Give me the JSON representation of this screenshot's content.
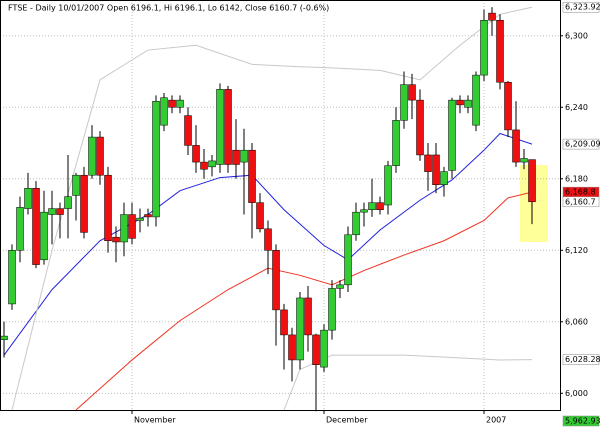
{
  "chart_data": {
    "type": "candlestick",
    "title": "FTSE - Daily 10/01/2007 Open 6196.1, Hi 6196.1, Lo 6142, Close 6160.7 (-0.6%)",
    "categories": [
      null,
      null,
      null,
      null,
      null,
      null,
      null,
      null,
      null,
      null,
      null,
      null,
      null,
      null,
      null,
      null,
      "November",
      null,
      null,
      null,
      null,
      null,
      null,
      null,
      null,
      null,
      null,
      null,
      null,
      null,
      null,
      null,
      null,
      null,
      null,
      null,
      null,
      null,
      null,
      null,
      "December",
      null,
      null,
      null,
      null,
      null,
      null,
      null,
      null,
      null,
      null,
      null,
      null,
      null,
      null,
      null,
      null,
      null,
      null,
      null,
      "2007",
      null,
      null,
      null,
      null,
      null,
      null
    ],
    "open": [
      6045,
      6075,
      6120,
      6155,
      6172,
      6112,
      6150,
      6155,
      6155,
      6166,
      6183,
      6183,
      6215,
      6183,
      6131,
      6127,
      6150,
      6145,
      6150,
      6148,
      6225,
      6246,
      6240,
      6233,
      6208,
      6194,
      6190,
      6192,
      6255,
      6204,
      6194,
      6204,
      6160,
      6138,
      6120,
      6070,
      6049,
      6028,
      6080,
      6049,
      6022,
      6053,
      6088,
      6091,
      6133,
      6152,
      6154,
      6160,
      6158,
      6191,
      6229,
      6259,
      6246,
      6200,
      6200,
      6175,
      6187,
      6246,
      6240,
      6225,
      6267,
      6319,
      6313,
      6261,
      6221,
      6194,
      6196.1
    ],
    "high": [
      6060,
      6125,
      6165,
      6185,
      6178,
      6170,
      6170,
      6160,
      6200,
      6185,
      6190,
      6225,
      6220,
      6190,
      6140,
      6160,
      6160,
      6155,
      6155,
      6250,
      6252,
      6250,
      6250,
      6240,
      6225,
      6205,
      6200,
      6260,
      6258,
      6230,
      6222,
      6210,
      6168,
      6145,
      6125,
      6075,
      6055,
      6085,
      6090,
      6050,
      6058,
      6095,
      6095,
      6140,
      6160,
      6160,
      6180,
      6165,
      6195,
      6240,
      6270,
      6268,
      6255,
      6210,
      6210,
      6190,
      6248,
      6250,
      6250,
      6270,
      6322,
      6324,
      6318,
      6262,
      6245,
      6205,
      6196.1
    ],
    "low": [
      6030,
      6070,
      6110,
      6150,
      6105,
      6108,
      6125,
      6130,
      6130,
      6145,
      6130,
      6180,
      6175,
      6118,
      6110,
      6115,
      6125,
      6135,
      6140,
      6140,
      6220,
      6235,
      6235,
      6200,
      6185,
      6180,
      6182,
      6185,
      6185,
      6180,
      6150,
      6130,
      6135,
      6100,
      6040,
      6020,
      6010,
      6020,
      6035,
      5985,
      6018,
      6045,
      6080,
      6085,
      6128,
      6140,
      6148,
      6150,
      6150,
      6185,
      6222,
      6230,
      6195,
      6170,
      6168,
      6165,
      6180,
      6235,
      6235,
      6220,
      6262,
      6300,
      6255,
      6215,
      6190,
      6188,
      6142
    ],
    "close": [
      6048,
      6120,
      6156,
      6172,
      6108,
      6152,
      6155,
      6150,
      6165,
      6183,
      6135,
      6215,
      6183,
      6128,
      6127,
      6150,
      6130,
      6147,
      6148,
      6245,
      6248,
      6240,
      6246,
      6208,
      6194,
      6188,
      6195,
      6255,
      6192,
      6192,
      6204,
      6160,
      6138,
      6120,
      6070,
      6049,
      6028,
      6080,
      6049,
      6024,
      6053,
      6088,
      6091,
      6133,
      6152,
      6154,
      6160,
      6154,
      6191,
      6229,
      6259,
      6246,
      6200,
      6186,
      6175,
      6186,
      6246,
      6242,
      6246,
      6267,
      6313,
      6313,
      6261,
      6221,
      6194,
      6197,
      6160.7
    ],
    "up_color": "#33cc33",
    "down_color": "#ee1111",
    "overlays": [
      {
        "color": "#2222dd",
        "x": [
          0,
          6,
          12,
          18,
          22,
          27,
          31,
          35,
          40,
          43,
          47,
          52,
          56,
          60,
          62,
          66
        ],
        "values": [
          6032,
          6087,
          6128,
          6150,
          6170,
          6181,
          6183,
          6154,
          6124,
          6112,
          6137,
          6162,
          6179,
          6204,
          6218,
          6209.09
        ]
      },
      {
        "color": "#ee3322",
        "x": [
          9,
          16,
          22,
          28,
          33,
          37,
          41,
          45,
          50,
          55,
          60,
          63,
          66
        ],
        "values": [
          5986,
          6028,
          6061,
          6087,
          6105,
          6099,
          6091,
          6103,
          6116,
          6128,
          6145,
          6164,
          6168.8
        ]
      },
      {
        "color": "#c8c8c8",
        "x": [
          1,
          6,
          12,
          18,
          24,
          31,
          37,
          41,
          47,
          52,
          57,
          62,
          66
        ],
        "values": [
          5986,
          6120,
          6263,
          6288,
          6292,
          6276,
          6274,
          6273,
          6271,
          6263,
          6292,
          6318,
          6323.92
        ]
      },
      {
        "color": "#c8c8c8",
        "x": [
          35,
          37,
          41,
          50,
          56,
          62,
          66
        ],
        "values": [
          5986,
          6020,
          6032,
          6032,
          6030,
          6028,
          6028.28
        ]
      }
    ],
    "price_labels": [
      {
        "value": 6323.92,
        "label": "6,323.92",
        "color": "#ffffff",
        "text_color": "#000000"
      },
      {
        "value": 6209.09,
        "label": "6,209.09",
        "color": "#ffffff",
        "text_color": "#000000"
      },
      {
        "value": 6168.8,
        "label": "6,168.8",
        "color": "#ee1111",
        "text_color": "#ffffff"
      },
      {
        "value": 6160.7,
        "label": "6,160.7",
        "color": "#ffffff",
        "text_color": "#000000"
      },
      {
        "value": 6028.28,
        "label": "6,028.28",
        "color": "#ffffff",
        "text_color": "#000000"
      },
      {
        "value": 5962.93,
        "label": "5,962.93",
        "color": "#33cc33",
        "text_color": "#000000"
      }
    ],
    "ylim": [
      5986,
      6330
    ],
    "yticks": [
      {
        "value": 6000,
        "label": "6,000"
      },
      {
        "value": 6060,
        "label": "6,060"
      },
      {
        "value": 6120,
        "label": "6,120"
      },
      {
        "value": 6180,
        "label": "6,180"
      },
      {
        "value": 6240,
        "label": "6,240"
      },
      {
        "value": 6300,
        "label": "6,300"
      }
    ],
    "grid": true
  }
}
